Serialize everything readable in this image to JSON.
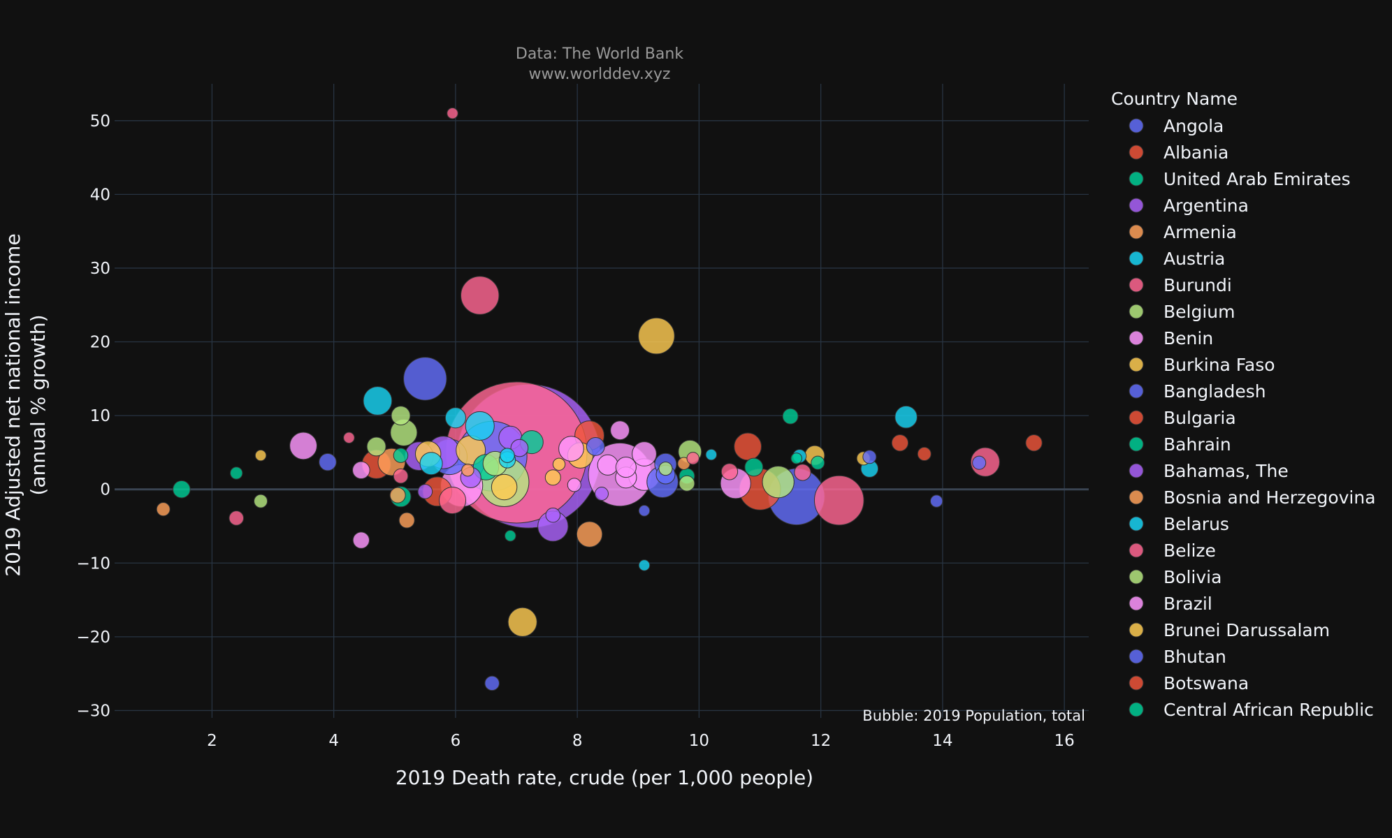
{
  "chart_data": {
    "type": "scatter",
    "title": "",
    "subtitle_lines": [
      "Data: The World Bank",
      "www.worlddev.xyz"
    ],
    "xlabel": "2019 Death rate, crude (per 1,000 people)",
    "ylabel_lines": [
      "2019 Adjusted net national income",
      "(annual % growth)"
    ],
    "xlim": [
      0.4,
      16.4
    ],
    "ylim": [
      -31,
      55
    ],
    "xticks": [
      2,
      4,
      6,
      8,
      10,
      12,
      14,
      16
    ],
    "yticks": [
      50,
      40,
      30,
      20,
      10,
      0,
      -10,
      -20,
      -30
    ],
    "ytick_labels": [
      "50",
      "40",
      "30",
      "20",
      "10",
      "0",
      "−10",
      "−20",
      "−30"
    ],
    "annotation": "Bubble: 2019 Population, total",
    "legend_title": "Country Name",
    "legend_position": "right",
    "grid": true,
    "series": [
      {
        "name": "Angola",
        "color": "#636efa"
      },
      {
        "name": "Albania",
        "color": "#EF553B"
      },
      {
        "name": "United Arab Emirates",
        "color": "#00cc96"
      },
      {
        "name": "Argentina",
        "color": "#ab63fa"
      },
      {
        "name": "Armenia",
        "color": "#FFA15A"
      },
      {
        "name": "Austria",
        "color": "#19d3f3"
      },
      {
        "name": "Burundi",
        "color": "#FF6692"
      },
      {
        "name": "Belgium",
        "color": "#B6E880"
      },
      {
        "name": "Benin",
        "color": "#FF97FF"
      },
      {
        "name": "Burkina Faso",
        "color": "#FECB52"
      },
      {
        "name": "Bangladesh",
        "color": "#636efa"
      },
      {
        "name": "Bulgaria",
        "color": "#EF553B"
      },
      {
        "name": "Bahrain",
        "color": "#00cc96"
      },
      {
        "name": "Bahamas, The",
        "color": "#ab63fa"
      },
      {
        "name": "Bosnia and Herzegovina",
        "color": "#FFA15A"
      },
      {
        "name": "Belarus",
        "color": "#19d3f3"
      },
      {
        "name": "Belize",
        "color": "#FF6692"
      },
      {
        "name": "Bolivia",
        "color": "#B6E880"
      },
      {
        "name": "Brazil",
        "color": "#FF97FF"
      },
      {
        "name": "Brunei Darussalam",
        "color": "#FECB52"
      },
      {
        "name": "Bhutan",
        "color": "#636efa"
      },
      {
        "name": "Botswana",
        "color": "#EF553B"
      },
      {
        "name": "Central African Republic",
        "color": "#00cc96"
      }
    ],
    "bubble_palette": [
      "#636efa",
      "#EF553B",
      "#00cc96",
      "#ab63fa",
      "#FFA15A",
      "#19d3f3",
      "#FF6692",
      "#B6E880",
      "#FF97FF",
      "#FECB52"
    ],
    "points": [
      {
        "x": 7.2,
        "y": 4.5,
        "size": 1400,
        "c": 3
      },
      {
        "x": 7.0,
        "y": 5.0,
        "size": 1350,
        "c": 6
      },
      {
        "x": 6.6,
        "y": 4.5,
        "size": 330,
        "c": 0
      },
      {
        "x": 8.7,
        "y": 2.0,
        "size": 270,
        "c": 8
      },
      {
        "x": 11.6,
        "y": -1.0,
        "size": 215,
        "c": 0
      },
      {
        "x": 12.3,
        "y": -1.5,
        "size": 165,
        "c": 6
      },
      {
        "x": 6.8,
        "y": 1.0,
        "size": 165,
        "c": 7
      },
      {
        "x": 6.1,
        "y": 0.5,
        "size": 120,
        "c": 8
      },
      {
        "x": 5.5,
        "y": 15.0,
        "size": 125,
        "c": 0
      },
      {
        "x": 11.0,
        "y": 0.0,
        "size": 115,
        "c": 1
      },
      {
        "x": 6.4,
        "y": 26.3,
        "size": 98,
        "c": 6
      },
      {
        "x": 9.3,
        "y": 20.8,
        "size": 88,
        "c": 9
      },
      {
        "x": 5.9,
        "y": 4.4,
        "size": 85,
        "c": 0
      },
      {
        "x": 5.8,
        "y": 5.0,
        "size": 72,
        "c": 3
      },
      {
        "x": 9.1,
        "y": 2.0,
        "size": 68,
        "c": 8
      },
      {
        "x": 11.3,
        "y": 1.0,
        "size": 68,
        "c": 7
      },
      {
        "x": 9.4,
        "y": 1.0,
        "size": 66,
        "c": 0
      },
      {
        "x": 10.6,
        "y": 0.8,
        "size": 62,
        "c": 8
      },
      {
        "x": 7.6,
        "y": -5.0,
        "size": 62,
        "c": 3
      },
      {
        "x": 6.25,
        "y": 5.3,
        "size": 58,
        "c": 9
      },
      {
        "x": 5.7,
        "y": -0.3,
        "size": 58,
        "c": 1
      },
      {
        "x": 6.4,
        "y": 8.6,
        "size": 56,
        "c": 5
      },
      {
        "x": 8.2,
        "y": 7.3,
        "size": 58,
        "c": 1
      },
      {
        "x": 7.1,
        "y": -18.0,
        "size": 56,
        "c": 9
      },
      {
        "x": 4.72,
        "y": 12.0,
        "size": 55,
        "c": 5
      },
      {
        "x": 5.4,
        "y": 4.5,
        "size": 55,
        "c": 3
      },
      {
        "x": 4.7,
        "y": 3.4,
        "size": 56,
        "c": 1
      },
      {
        "x": 14.7,
        "y": 3.7,
        "size": 56,
        "c": 6
      },
      {
        "x": 3.5,
        "y": 5.9,
        "size": 50,
        "c": 8
      },
      {
        "x": 4.95,
        "y": 3.7,
        "size": 50,
        "c": 4
      },
      {
        "x": 5.95,
        "y": -1.5,
        "size": 48,
        "c": 6
      },
      {
        "x": 10.8,
        "y": 5.8,
        "size": 50,
        "c": 1
      },
      {
        "x": 5.15,
        "y": 7.7,
        "size": 48,
        "c": 7
      },
      {
        "x": 6.8,
        "y": 0.3,
        "size": 44,
        "c": 9
      },
      {
        "x": 8.2,
        "y": -6.1,
        "size": 44,
        "c": 4
      },
      {
        "x": 8.05,
        "y": 4.6,
        "size": 44,
        "c": 9
      },
      {
        "x": 5.55,
        "y": 4.8,
        "size": 44,
        "c": 9
      },
      {
        "x": 6.5,
        "y": 3.0,
        "size": 44,
        "c": 2
      },
      {
        "x": 7.9,
        "y": 5.5,
        "size": 42,
        "c": 8
      },
      {
        "x": 9.1,
        "y": 4.8,
        "size": 40,
        "c": 8
      },
      {
        "x": 6.65,
        "y": 3.5,
        "size": 40,
        "c": 7
      },
      {
        "x": 9.85,
        "y": 5.1,
        "size": 36,
        "c": 7
      },
      {
        "x": 6.9,
        "y": 7.0,
        "size": 36,
        "c": 3
      },
      {
        "x": 5.6,
        "y": 3.5,
        "size": 34,
        "c": 5
      },
      {
        "x": 7.25,
        "y": 6.4,
        "size": 36,
        "c": 2
      },
      {
        "x": 13.4,
        "y": 9.8,
        "size": 33,
        "c": 5
      },
      {
        "x": 9.45,
        "y": 3.4,
        "size": 32,
        "c": 0
      },
      {
        "x": 8.8,
        "y": 1.6,
        "size": 30,
        "c": 8
      },
      {
        "x": 6.25,
        "y": 1.6,
        "size": 28,
        "c": 3
      },
      {
        "x": 8.5,
        "y": 3.3,
        "size": 28,
        "c": 8
      },
      {
        "x": 6.0,
        "y": 9.7,
        "size": 28,
        "c": 5
      },
      {
        "x": 8.7,
        "y": 8.0,
        "size": 24,
        "c": 8
      },
      {
        "x": 4.7,
        "y": 5.8,
        "size": 24,
        "c": 7
      },
      {
        "x": 8.3,
        "y": 5.8,
        "size": 22,
        "c": 0
      },
      {
        "x": 11.9,
        "y": 4.6,
        "size": 26,
        "c": 9
      },
      {
        "x": 5.1,
        "y": 10.0,
        "size": 24,
        "c": 7
      },
      {
        "x": 5.1,
        "y": -1.0,
        "size": 28,
        "c": 2
      },
      {
        "x": 10.9,
        "y": 3.0,
        "size": 22,
        "c": 2
      },
      {
        "x": 8.8,
        "y": 3.0,
        "size": 28,
        "c": 8
      },
      {
        "x": 9.45,
        "y": 2.0,
        "size": 24,
        "c": 0
      },
      {
        "x": 7.05,
        "y": 5.6,
        "size": 20,
        "c": 3
      },
      {
        "x": 7.6,
        "y": 1.6,
        "size": 16,
        "c": 9
      },
      {
        "x": 6.85,
        "y": 4.0,
        "size": 18,
        "c": 5
      },
      {
        "x": 3.9,
        "y": 3.7,
        "size": 20,
        "c": 0
      },
      {
        "x": 4.45,
        "y": 2.6,
        "size": 20,
        "c": 8
      },
      {
        "x": 4.45,
        "y": -6.9,
        "size": 18,
        "c": 8
      },
      {
        "x": 1.5,
        "y": 0.0,
        "size": 20,
        "c": 2
      },
      {
        "x": 12.8,
        "y": 2.8,
        "size": 20,
        "c": 5
      },
      {
        "x": 13.3,
        "y": 6.3,
        "size": 18,
        "c": 1
      },
      {
        "x": 15.5,
        "y": 6.3,
        "size": 18,
        "c": 1
      },
      {
        "x": 11.5,
        "y": 9.9,
        "size": 16,
        "c": 2
      },
      {
        "x": 11.7,
        "y": 2.3,
        "size": 18,
        "c": 6
      },
      {
        "x": 10.5,
        "y": 2.4,
        "size": 18,
        "c": 6
      },
      {
        "x": 9.8,
        "y": 1.8,
        "size": 16,
        "c": 2
      },
      {
        "x": 9.8,
        "y": 0.8,
        "size": 16,
        "c": 7
      },
      {
        "x": 5.2,
        "y": -4.2,
        "size": 16,
        "c": 4
      },
      {
        "x": 5.05,
        "y": -0.8,
        "size": 16,
        "c": 4
      },
      {
        "x": 6.6,
        "y": -26.3,
        "size": 14,
        "c": 0
      },
      {
        "x": 2.4,
        "y": -3.9,
        "size": 14,
        "c": 6
      },
      {
        "x": 5.1,
        "y": 1.8,
        "size": 14,
        "c": 6
      },
      {
        "x": 5.1,
        "y": 4.6,
        "size": 14,
        "c": 2
      },
      {
        "x": 5.5,
        "y": -0.3,
        "size": 14,
        "c": 3
      },
      {
        "x": 6.85,
        "y": 4.6,
        "size": 14,
        "c": 5
      },
      {
        "x": 7.6,
        "y": -3.5,
        "size": 14,
        "c": 3
      },
      {
        "x": 11.95,
        "y": 3.6,
        "size": 12,
        "c": 2
      },
      {
        "x": 11.65,
        "y": 4.5,
        "size": 12,
        "c": 5
      },
      {
        "x": 12.7,
        "y": 4.2,
        "size": 12,
        "c": 9
      },
      {
        "x": 12.8,
        "y": 4.4,
        "size": 12,
        "c": 0
      },
      {
        "x": 13.7,
        "y": 4.8,
        "size": 12,
        "c": 1
      },
      {
        "x": 14.6,
        "y": 3.6,
        "size": 12,
        "c": 0
      },
      {
        "x": 1.2,
        "y": -2.7,
        "size": 12,
        "c": 4
      },
      {
        "x": 2.8,
        "y": -1.6,
        "size": 12,
        "c": 7
      },
      {
        "x": 7.95,
        "y": 0.6,
        "size": 12,
        "c": 8
      },
      {
        "x": 8.4,
        "y": -0.6,
        "size": 12,
        "c": 3
      },
      {
        "x": 9.45,
        "y": 2.8,
        "size": 12,
        "c": 7
      },
      {
        "x": 9.75,
        "y": 3.5,
        "size": 10,
        "c": 4
      },
      {
        "x": 9.9,
        "y": 4.2,
        "size": 10,
        "c": 6
      },
      {
        "x": 13.9,
        "y": -1.6,
        "size": 10,
        "c": 0
      },
      {
        "x": 2.4,
        "y": 2.2,
        "size": 10,
        "c": 2
      },
      {
        "x": 2.8,
        "y": 4.6,
        "size": 8,
        "c": 9
      },
      {
        "x": 4.25,
        "y": 7.0,
        "size": 8,
        "c": 6
      },
      {
        "x": 5.95,
        "y": 51.0,
        "size": 8,
        "c": 6
      },
      {
        "x": 9.1,
        "y": -2.9,
        "size": 8,
        "c": 0
      },
      {
        "x": 9.1,
        "y": -10.3,
        "size": 8,
        "c": 5
      },
      {
        "x": 6.9,
        "y": -6.3,
        "size": 8,
        "c": 2
      },
      {
        "x": 11.6,
        "y": 4.2,
        "size": 8,
        "c": 2
      },
      {
        "x": 7.7,
        "y": 3.4,
        "size": 10,
        "c": 9
      },
      {
        "x": 6.2,
        "y": 2.6,
        "size": 10,
        "c": 4
      },
      {
        "x": 10.2,
        "y": 4.7,
        "size": 8,
        "c": 5
      }
    ]
  }
}
